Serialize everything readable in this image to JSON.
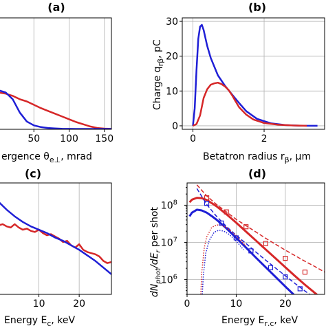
{
  "colors": {
    "red": "#d62728",
    "blue": "#1f1fd6",
    "grid": "#b0b0b0"
  },
  "chart_data": [
    {
      "id": "a",
      "type": "line",
      "title": "(a)",
      "xlabel": "ergence θ",
      "xlabel_sub": "e⊥",
      "xlabel_unit": ", mrad",
      "ylabel": "",
      "xlim": [
        0,
        160
      ],
      "ylim": [
        0,
        1
      ],
      "xticks": [
        50,
        100,
        150
      ],
      "grid": true,
      "series": [
        {
          "color": "red",
          "x": [
            0,
            10,
            20,
            30,
            40,
            50,
            60,
            70,
            80,
            90,
            100,
            110,
            120,
            130,
            140,
            150,
            160
          ],
          "y": [
            0.33,
            0.32,
            0.3,
            0.27,
            0.25,
            0.22,
            0.19,
            0.165,
            0.14,
            0.115,
            0.09,
            0.065,
            0.045,
            0.025,
            0.012,
            0.006,
            0.004
          ]
        },
        {
          "color": "blue",
          "x": [
            0,
            10,
            20,
            30,
            40,
            50,
            60,
            70,
            80,
            90,
            100,
            110,
            120,
            140,
            160
          ],
          "y": [
            0.35,
            0.33,
            0.27,
            0.15,
            0.07,
            0.035,
            0.02,
            0.012,
            0.008,
            0.005,
            0.004,
            0.003,
            0.003,
            0.003,
            0.003
          ]
        }
      ]
    },
    {
      "id": "b",
      "type": "line",
      "title": "(b)",
      "xlabel": "Betatron radius r",
      "xlabel_sub": "β",
      "xlabel_unit": ", μm",
      "ylabel": "Charge q",
      "ylabel_sub": "rβ",
      "ylabel_unit": ", pC",
      "xlim": [
        -0.3,
        3.7
      ],
      "ylim": [
        -1,
        31
      ],
      "xticks": [
        0,
        2
      ],
      "yticks": [
        0,
        10,
        20,
        30
      ],
      "grid": true,
      "series": [
        {
          "color": "blue",
          "x": [
            0,
            0.05,
            0.1,
            0.15,
            0.2,
            0.25,
            0.3,
            0.4,
            0.5,
            0.7,
            0.9,
            1.1,
            1.3,
            1.5,
            1.8,
            2.2,
            2.6,
            3.0,
            3.5
          ],
          "y": [
            0,
            5,
            16,
            25,
            28.5,
            29,
            27.5,
            23,
            19.5,
            14.5,
            11.5,
            9,
            6.5,
            4.2,
            2,
            0.7,
            0.2,
            0.05,
            0
          ]
        },
        {
          "color": "red",
          "x": [
            0,
            0.1,
            0.2,
            0.3,
            0.4,
            0.5,
            0.6,
            0.7,
            0.8,
            0.9,
            1.0,
            1.1,
            1.2,
            1.3,
            1.5,
            1.7,
            2.0,
            2.4,
            2.8,
            3.2
          ],
          "y": [
            0,
            0.5,
            3,
            8,
            10.5,
            11.8,
            12.2,
            12.4,
            12.0,
            11.3,
            10.3,
            8.8,
            7.0,
            5.3,
            3.2,
            1.8,
            0.8,
            0.3,
            0.1,
            0
          ]
        }
      ]
    },
    {
      "id": "c",
      "type": "line",
      "title": "(c)",
      "xlabel": "Energy E",
      "xlabel_sub": "c",
      "xlabel_unit": ", keV",
      "ylabel": "",
      "xlim": [
        0,
        28
      ],
      "ylim": [
        0,
        1
      ],
      "xticks": [
        10,
        20
      ],
      "grid": true,
      "series": [
        {
          "color": "red",
          "x": [
            0,
            1,
            2,
            3,
            4,
            5,
            6,
            7,
            8,
            9,
            10,
            11,
            12,
            13,
            14,
            15,
            16,
            17,
            18,
            19,
            20,
            21,
            22,
            23,
            24,
            25,
            26,
            27,
            28
          ],
          "y": [
            0.62,
            0.63,
            0.61,
            0.6,
            0.63,
            0.6,
            0.58,
            0.59,
            0.57,
            0.56,
            0.58,
            0.55,
            0.53,
            0.54,
            0.52,
            0.5,
            0.47,
            0.48,
            0.44,
            0.42,
            0.45,
            0.4,
            0.38,
            0.37,
            0.36,
            0.34,
            0.3,
            0.28,
            0.29
          ]
        },
        {
          "color": "blue",
          "x": [
            0,
            2,
            4,
            6,
            8,
            10,
            12,
            14,
            16,
            18,
            20,
            22,
            24,
            26,
            28
          ],
          "y": [
            0.83,
            0.76,
            0.7,
            0.65,
            0.61,
            0.58,
            0.55,
            0.51,
            0.48,
            0.44,
            0.4,
            0.35,
            0.3,
            0.24,
            0.18
          ]
        }
      ]
    },
    {
      "id": "d",
      "type": "line",
      "title": "(d)",
      "xlabel": "Energy E",
      "xlabel_sub": "r,c",
      "xlabel_unit": ", keV",
      "ylabel": "dN",
      "ylabel_sub1": "phot",
      "ylabel_mid": "/dE",
      "ylabel_sub2": "r",
      "ylabel_unit": " per shot",
      "xlim": [
        0,
        28
      ],
      "ylim_log10": [
        5.6,
        8.6
      ],
      "scale": "log",
      "xticks": [
        0,
        10,
        20
      ],
      "yticks_log10": [
        6,
        7,
        8
      ],
      "ytick_labels": [
        "10",
        "10",
        "10"
      ],
      "ytick_exps": [
        "6",
        "7",
        "8"
      ],
      "grid": true,
      "series": [
        {
          "color": "red",
          "style": "solid",
          "width": 3,
          "x": [
            0.5,
            1,
            2,
            3,
            4,
            5,
            6,
            8,
            10,
            12,
            14,
            16,
            18,
            20,
            22,
            24,
            26,
            28
          ],
          "y_log10": [
            8.08,
            8.15,
            8.2,
            8.19,
            8.14,
            8.06,
            7.97,
            7.76,
            7.53,
            7.29,
            7.05,
            6.81,
            6.57,
            6.33,
            6.09,
            5.86,
            5.64,
            5.42
          ]
        },
        {
          "color": "blue",
          "style": "solid",
          "width": 3,
          "x": [
            0.5,
            1,
            2,
            3,
            4,
            5,
            6,
            8,
            10,
            12,
            14,
            16,
            18,
            20,
            22,
            23
          ],
          "y_log10": [
            7.7,
            7.8,
            7.88,
            7.86,
            7.8,
            7.71,
            7.61,
            7.38,
            7.12,
            6.86,
            6.59,
            6.33,
            6.07,
            5.81,
            5.56,
            5.45
          ]
        },
        {
          "color": "red",
          "style": "dashed",
          "width": 1.5,
          "x": [
            2,
            4,
            6,
            8,
            10,
            12,
            14,
            16,
            18,
            20,
            22,
            24,
            26,
            28
          ],
          "y_log10": [
            8.55,
            8.25,
            8.02,
            7.82,
            7.62,
            7.45,
            7.28,
            7.11,
            6.95,
            6.79,
            6.64,
            6.49,
            6.35,
            6.2
          ]
        },
        {
          "color": "blue",
          "style": "dashed",
          "width": 1.5,
          "x": [
            2,
            4,
            6,
            8,
            10,
            12,
            14,
            16,
            18,
            20,
            22,
            24,
            26,
            28
          ],
          "y_log10": [
            8.45,
            8.02,
            7.7,
            7.43,
            7.19,
            6.97,
            6.74,
            6.52,
            6.31,
            6.1,
            5.89,
            5.69,
            5.5,
            5.32
          ]
        },
        {
          "color": "red",
          "style": "dotted",
          "width": 1.5,
          "x": [
            2.8,
            3,
            3.5,
            4,
            5,
            6,
            7,
            8,
            9,
            10,
            11,
            12
          ],
          "y_log10": [
            5.6,
            6.2,
            6.85,
            7.15,
            7.4,
            7.47,
            7.46,
            7.4,
            7.3,
            7.18,
            7.04,
            6.9
          ]
        },
        {
          "color": "blue",
          "style": "dotted",
          "width": 1.5,
          "x": [
            3.1,
            3.3,
            3.8,
            4.5,
            5.5,
            6.5,
            7.5,
            8.5,
            9.5,
            10.5,
            11.5
          ],
          "y_log10": [
            5.6,
            6.1,
            6.7,
            7.05,
            7.27,
            7.33,
            7.3,
            7.22,
            7.1,
            6.96,
            6.8
          ]
        },
        {
          "color": "red",
          "style": "markers",
          "width": 1.2,
          "x": [
            4,
            8,
            12,
            16,
            20,
            24
          ],
          "y_log10": [
            8.2,
            7.82,
            7.42,
            6.97,
            6.57,
            6.2
          ]
        },
        {
          "color": "blue",
          "style": "markers",
          "width": 1.2,
          "x": [
            4,
            7,
            10,
            13,
            17,
            20,
            23
          ],
          "y_log10": [
            8.05,
            7.52,
            7.12,
            6.77,
            6.32,
            6.07,
            5.75
          ]
        }
      ]
    }
  ]
}
